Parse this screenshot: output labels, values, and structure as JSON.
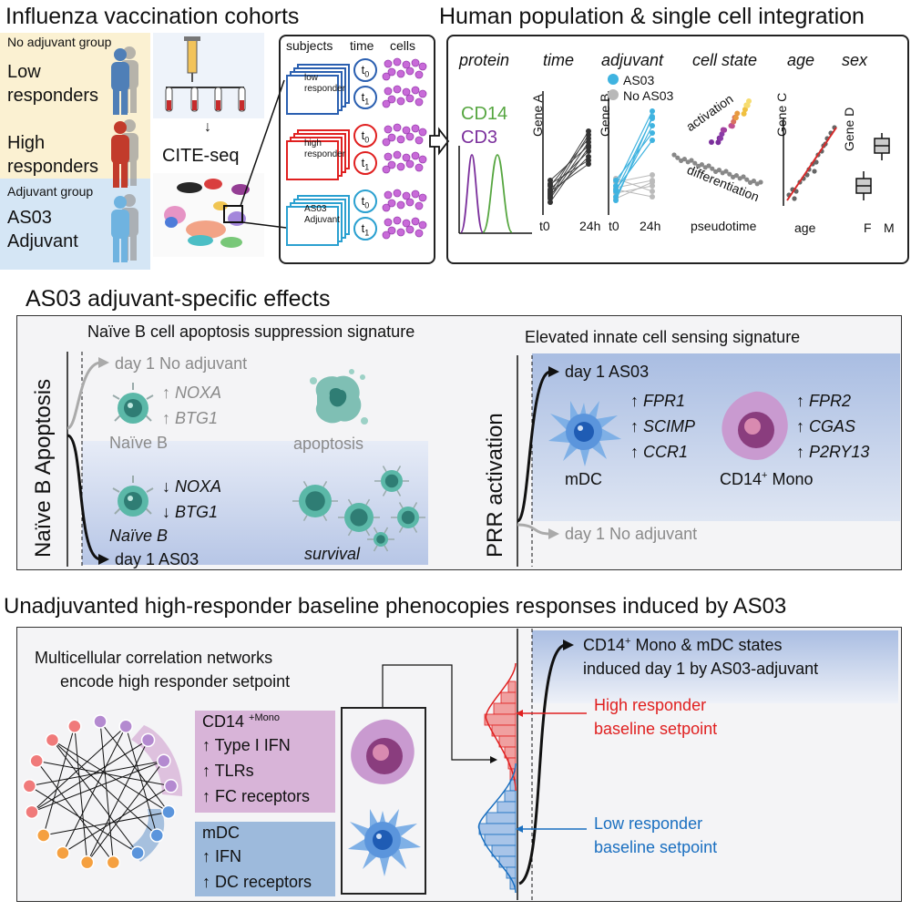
{
  "top_left": {
    "title": "Influenza vaccination cohorts",
    "no_adjuvant_group": "No adjuvant group",
    "low_responders": [
      "Low",
      "responders"
    ],
    "high_responders": [
      "High",
      "responders"
    ],
    "adjuvant_group": "Adjuvant group",
    "as03_adjuvant": [
      "AS03",
      "Adjuvant"
    ],
    "cite_seq": "CITE-seq",
    "col_headers": [
      "subjects",
      "time",
      "cells"
    ],
    "stacks": [
      {
        "label": [
          "low",
          "responder"
        ],
        "color": "#2a5fb0"
      },
      {
        "label": [
          "high",
          "responder"
        ],
        "color": "#e02020"
      },
      {
        "label": [
          "AS03",
          "Adjuvant"
        ],
        "color": "#2aa0d0"
      }
    ],
    "t0_base": "t",
    "t0_sub": "0",
    "t1_base": "t",
    "t1_sub": "1"
  },
  "top_right": {
    "title": "Human population & single cell integration",
    "col_headers": [
      "protein",
      "time",
      "adjuvant",
      "cell state",
      "age",
      "sex"
    ],
    "cd14": "CD14",
    "cd3": "CD3",
    "gene_a": "Gene A",
    "gene_b": "Gene B",
    "gene_c": "Gene C",
    "gene_d": "Gene D",
    "legend_as03": "AS03",
    "legend_no_as03": "No AS03",
    "t0": "t0",
    "h24": "24h",
    "pseudotime": "pseudotime",
    "activation": "activation",
    "differentiation": "differentiation",
    "age": "age",
    "f": "F",
    "m": "M"
  },
  "middle": {
    "title": "AS03 adjuvant-specific effects",
    "left_subtitle": "Naïve B cell apoptosis suppression signature",
    "left_axis": "Naïve B Apoptosis",
    "day1_no_adj": "day 1 No adjuvant",
    "noxa": "NOXA",
    "btg1": "BTG1",
    "up_arrow": "↑",
    "down_arrow": "↓",
    "naive_b": "Naïve B",
    "apoptosis": "apoptosis",
    "survival": "survival",
    "day1_as03": "day 1 AS03",
    "right_subtitle": "Elevated innate cell sensing signature",
    "right_axis": "PRR activation",
    "r_day1_as03": "day 1 AS03",
    "r_day1_no_adj": "day 1 No adjuvant",
    "mdc_genes": [
      "FPR1",
      "SCIMP",
      "CCR1"
    ],
    "mono_genes": [
      "FPR2",
      "CGAS",
      "P2RY13"
    ],
    "mdc": "mDC",
    "cd14_mono_base": "CD14",
    "cd14_mono_sup": "+",
    "cd14_mono_rest": " Mono"
  },
  "bottom": {
    "title": "Unadjuvanted high-responder baseline phenocopies responses induced by AS03",
    "network_text": [
      "Multicellular correlation networks",
      "encode high responder setpoint"
    ],
    "mono_box": [
      "CD14",
      "+Mono",
      "↑ Type I IFN",
      "↑ TLRs",
      "↑ FC receptors"
    ],
    "mdc_box": [
      "mDC",
      "↑ IFN",
      "↑ DC receptors"
    ],
    "induced_text": [
      "CD14",
      "+",
      " Mono & mDC states",
      "induced day 1 by AS03-adjuvant"
    ],
    "high_resp": [
      "High responder",
      "baseline setpoint"
    ],
    "low_resp": [
      "Low responder",
      "baseline setpoint"
    ]
  },
  "colors": {
    "beige": "#fbf1d2",
    "light_blue": "#d5e6f5",
    "mauve": "#d8b4d8",
    "steel_blue": "#9dbadc",
    "red": "#e02020",
    "blue": "#1a6fc0",
    "green": "#56a640",
    "purple": "#7b2f9c"
  }
}
